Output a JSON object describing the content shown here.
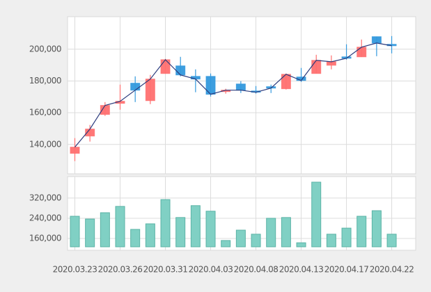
{
  "chart_data": {
    "type": "candlestick",
    "categories": [
      "2020.03.23",
      null,
      null,
      "2020.03.26",
      null,
      null,
      "2020.03.31",
      null,
      null,
      "2020.04.03",
      null,
      null,
      "2020.04.08",
      null,
      null,
      "2020.04.13",
      null,
      null,
      "2020.04.17",
      null,
      null,
      "2020.04.22"
    ],
    "open": [
      134400,
      145300,
      158900,
      165900,
      178600,
      167600,
      184700,
      189500,
      182900,
      182900,
      173300,
      178100,
      173700,
      176400,
      175100,
      182500,
      184700,
      189900,
      195200,
      195200,
      207900,
      203100
    ],
    "high": [
      144000,
      152300,
      166700,
      177700,
      182900,
      183800,
      193900,
      195200,
      187300,
      184700,
      175100,
      179900,
      176800,
      177700,
      184700,
      188200,
      196500,
      196100,
      203100,
      206100,
      207900,
      208300
    ],
    "low": [
      129500,
      141800,
      158000,
      161900,
      166700,
      165400,
      184700,
      182900,
      172900,
      170200,
      172000,
      172400,
      172000,
      172400,
      174600,
      179400,
      184700,
      187300,
      193400,
      195200,
      195600,
      197400
    ],
    "close": [
      138300,
      149700,
      164600,
      167200,
      174200,
      181200,
      193400,
      183800,
      181200,
      171600,
      174200,
      174200,
      172900,
      175500,
      184200,
      180300,
      193000,
      192100,
      194300,
      201300,
      203900,
      202200
    ],
    "volume": [
      248000,
      237000,
      262000,
      287000,
      196000,
      218000,
      314000,
      243000,
      290000,
      268000,
      152000,
      193000,
      177000,
      240000,
      243000,
      143000,
      383000,
      177000,
      201000,
      248000,
      270000,
      177000
    ],
    "ylim": [
      121500,
      220500
    ],
    "yticks": [
      {
        "value": 140000,
        "label": "140,000"
      },
      {
        "value": 160000,
        "label": "160,000"
      },
      {
        "value": 180000,
        "label": "180,000"
      },
      {
        "value": 200000,
        "label": "200,000"
      }
    ],
    "volume_ylim": [
      127000,
      405000
    ],
    "volume_yticks": [
      {
        "value": 160000,
        "label": "160,000"
      },
      {
        "value": 240000,
        "label": "240,000"
      },
      {
        "value": 320000,
        "label": "320,000"
      }
    ],
    "up_color": "#ff7070",
    "down_color": "#3399dd",
    "volume_color": "#80d0c4",
    "line_color": "#2b3a7c",
    "grid": true
  }
}
